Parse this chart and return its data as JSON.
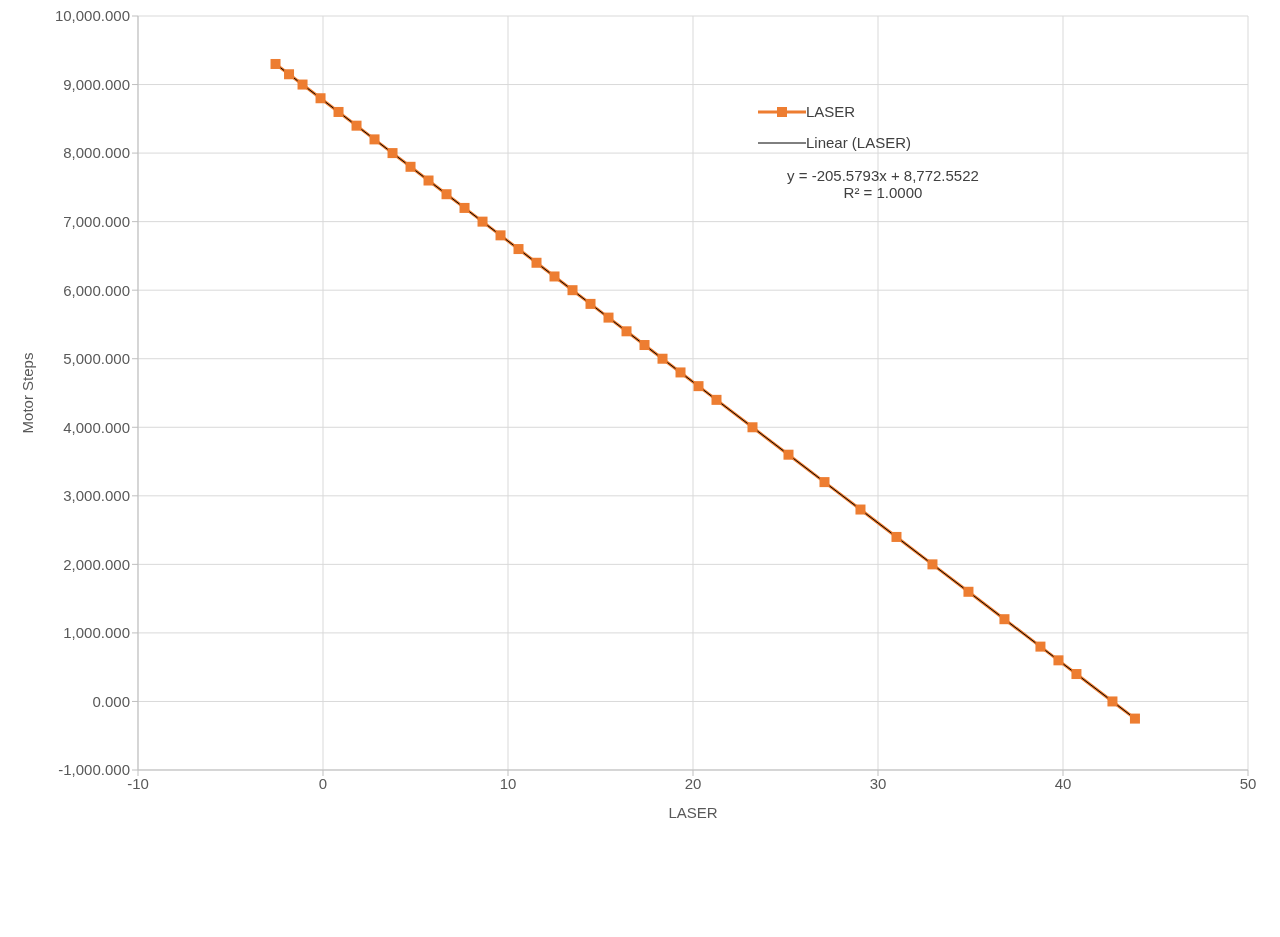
{
  "chart_data": {
    "type": "line",
    "xlabel": "LASER",
    "ylabel": "Motor Steps",
    "xlim": [
      -10,
      50
    ],
    "xticks": [
      -10,
      0,
      10,
      20,
      30,
      40,
      50
    ],
    "ylim": [
      -1000,
      10000
    ],
    "yticks": [
      {
        "value": -1000,
        "label": "-1,000.000"
      },
      {
        "value": 0,
        "label": "0.000"
      },
      {
        "value": 1000,
        "label": "1,000.000"
      },
      {
        "value": 2000,
        "label": "2,000.000"
      },
      {
        "value": 3000,
        "label": "3,000.000"
      },
      {
        "value": 4000,
        "label": "4,000.000"
      },
      {
        "value": 5000,
        "label": "5,000.000"
      },
      {
        "value": 6000,
        "label": "6,000.000"
      },
      {
        "value": 7000,
        "label": "7,000.000"
      },
      {
        "value": 8000,
        "label": "8,000.000"
      },
      {
        "value": 9000,
        "label": "9,000.000"
      },
      {
        "value": 10000,
        "label": "10,000.000"
      }
    ],
    "grid": true,
    "legend": "top right",
    "marker": "square",
    "line_style": "solid",
    "annotations": [
      "y = -205.5793x + 8,772.5522",
      "R² = 1.0000"
    ],
    "series": [
      {
        "name": "LASER",
        "color": "#ed7d31",
        "x": [
          -2.566,
          -1.836,
          -1.106,
          -0.133,
          0.839,
          1.812,
          2.785,
          3.758,
          4.731,
          5.704,
          6.677,
          7.65,
          8.623,
          9.596,
          10.568,
          11.541,
          12.514,
          13.487,
          14.46,
          15.433,
          16.406,
          17.379,
          18.352,
          19.325,
          20.298,
          21.27,
          23.216,
          25.162,
          27.108,
          29.053,
          30.999,
          32.944,
          34.89,
          36.836,
          38.781,
          39.754,
          40.727,
          42.673,
          43.889
        ],
        "values": [
          9300,
          9150,
          9000,
          8800,
          8600,
          8400,
          8200,
          8000,
          7800,
          7600,
          7400,
          7200,
          7000,
          6800,
          6600,
          6400,
          6200,
          6000,
          5800,
          5600,
          5400,
          5200,
          5000,
          4800,
          4600,
          4400,
          4000,
          3600,
          3200,
          2800,
          2400,
          2000,
          1600,
          1200,
          800,
          600,
          400,
          0,
          -250
        ]
      },
      {
        "name": "Linear (LASER)",
        "type": "line",
        "color": "#000000",
        "marker": "none",
        "x": [
          -2.566,
          43.889
        ],
        "values": [
          9300,
          -250
        ]
      }
    ]
  }
}
